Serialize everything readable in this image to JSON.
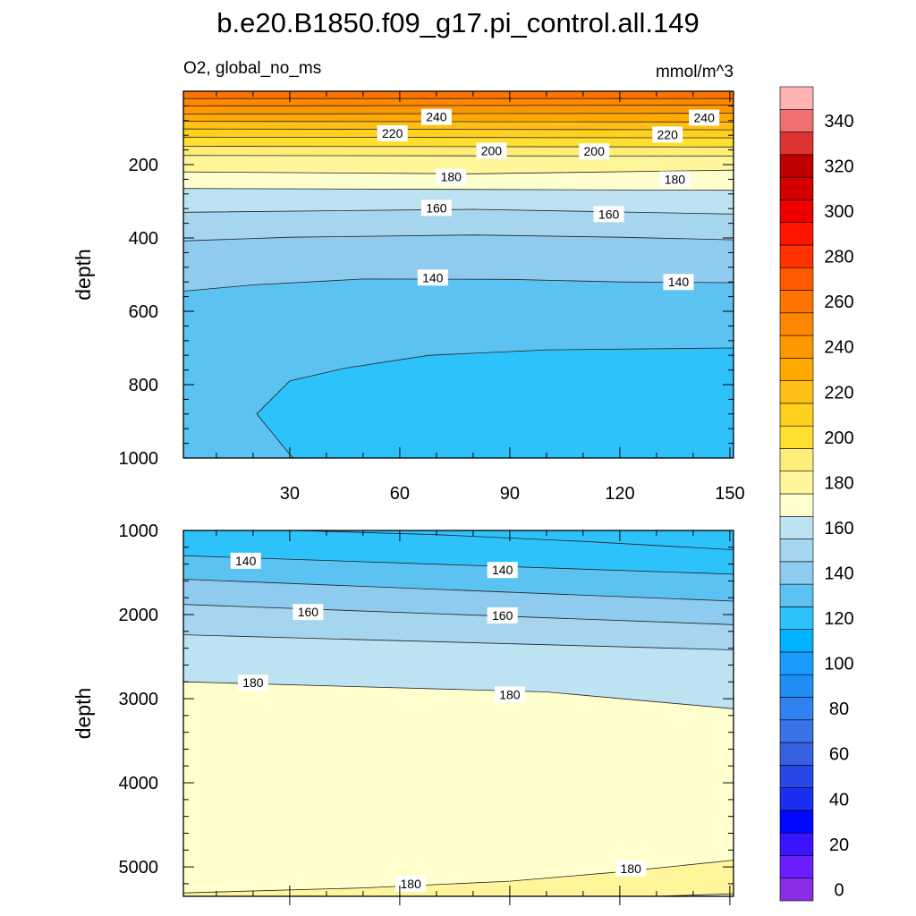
{
  "chart_data": {
    "type": "contour",
    "title": "b.e20.B1850.f09_g17.pi_control.all.149",
    "subtitle_left": "O2, global_no_ms",
    "subtitle_right": "mmol/m^3",
    "units": "mmol/m^3",
    "colorbar": {
      "levels": [
        0,
        10,
        20,
        30,
        40,
        50,
        60,
        70,
        80,
        90,
        100,
        110,
        120,
        130,
        140,
        150,
        160,
        170,
        180,
        190,
        200,
        210,
        220,
        230,
        240,
        250,
        260,
        270,
        280,
        290,
        300,
        310,
        320,
        330,
        340,
        350
      ],
      "labels": [
        "0",
        "20",
        "40",
        "60",
        "80",
        "100",
        "120",
        "140",
        "160",
        "180",
        "200",
        "220",
        "240",
        "260",
        "280",
        "300",
        "320",
        "340"
      ],
      "colors": [
        "#8b2ce6",
        "#6a1eff",
        "#3a14ff",
        "#0008ff",
        "#1a2ff2",
        "#2a48e8",
        "#3560e0",
        "#3a72e8",
        "#2f82f0",
        "#1f8ff5",
        "#1a9cff",
        "#00b1ff",
        "#2ec2fb",
        "#5cc2f2",
        "#8ecbef",
        "#a6d5ef",
        "#bde2f2",
        "#ffffce",
        "#fff69b",
        "#ffed7a",
        "#ffe030",
        "#ffd11f",
        "#ffbf15",
        "#ffaa00",
        "#ff9700",
        "#ff8600",
        "#ff7400",
        "#ff5a00",
        "#ff3200",
        "#ff1400",
        "#ee0000",
        "#d40000",
        "#c00000",
        "#dd3333",
        "#ee7070",
        "#ffb4b4"
      ]
    },
    "panels": [
      {
        "name": "upper",
        "ylabel": "depth",
        "ylim": [
          0,
          1000
        ],
        "xlim": [
          1,
          151
        ],
        "xticks": [
          30,
          60,
          90,
          120,
          150
        ],
        "yticks": [
          200,
          400,
          600,
          800,
          1000
        ],
        "bands": [
          {
            "lower": 250,
            "upper": 260,
            "color": "#ff8600",
            "boundary": [
              [
                1,
                20
              ],
              [
                151,
                20
              ]
            ]
          },
          {
            "lower": 240,
            "upper": 250,
            "color": "#ff9700",
            "boundary": [
              [
                1,
                40
              ],
              [
                151,
                38
              ]
            ]
          },
          {
            "lower": 230,
            "upper": 240,
            "color": "#ffaa00",
            "boundary": [
              [
                1,
                62
              ],
              [
                151,
                60
              ]
            ]
          },
          {
            "lower": 220,
            "upper": 230,
            "color": "#ffbf15",
            "boundary": [
              [
                1,
                82
              ],
              [
                151,
                84
              ]
            ]
          },
          {
            "lower": 210,
            "upper": 220,
            "color": "#ffd11f",
            "boundary": [
              [
                1,
                103
              ],
              [
                151,
                105
              ]
            ]
          },
          {
            "lower": 200,
            "upper": 210,
            "color": "#ffe030",
            "boundary": [
              [
                1,
                125
              ],
              [
                151,
                127
              ]
            ]
          },
          {
            "lower": 190,
            "upper": 200,
            "color": "#ffed7a",
            "boundary": [
              [
                1,
                150
              ],
              [
                151,
                152
              ]
            ]
          },
          {
            "lower": 180,
            "upper": 190,
            "color": "#fff69b",
            "boundary": [
              [
                1,
                175
              ],
              [
                151,
                177
              ]
            ]
          },
          {
            "lower": 170,
            "upper": 180,
            "color": "#ffffce",
            "boundary": [
              [
                1,
                220
              ],
              [
                80,
                225
              ],
              [
                151,
                215
              ]
            ]
          },
          {
            "lower": 160,
            "upper": 170,
            "color": "#bde2f2",
            "boundary": [
              [
                1,
                265
              ],
              [
                151,
                270
              ]
            ]
          },
          {
            "lower": 150,
            "upper": 160,
            "color": "#a6d5ef",
            "boundary": [
              [
                1,
                330
              ],
              [
                80,
                322
              ],
              [
                151,
                335
              ]
            ]
          },
          {
            "lower": 140,
            "upper": 150,
            "color": "#8ecbef",
            "boundary": [
              [
                1,
                408
              ],
              [
                30,
                398
              ],
              [
                80,
                392
              ],
              [
                120,
                398
              ],
              [
                151,
                405
              ]
            ]
          },
          {
            "lower": 130,
            "upper": 140,
            "color": "#5cc2f2",
            "boundary": [
              [
                1,
                545
              ],
              [
                20,
                528
              ],
              [
                50,
                512
              ],
              [
                90,
                513
              ],
              [
                120,
                520
              ],
              [
                151,
                522
              ]
            ]
          }
        ],
        "pool": {
          "lower": 120,
          "upper": 130,
          "color": "#2ec2fb",
          "boundary": [
            [
              151,
              700
            ],
            [
              100,
              705
            ],
            [
              68,
              720
            ],
            [
              45,
              755
            ],
            [
              30,
              790
            ],
            [
              21,
              880
            ],
            [
              30,
              990
            ],
            [
              31,
              1000
            ],
            [
              151,
              1000
            ]
          ]
        },
        "contour_labels": [
          {
            "text": "240",
            "x": 70,
            "y": 70
          },
          {
            "text": "240",
            "x": 143,
            "y": 72
          },
          {
            "text": "220",
            "x": 58,
            "y": 115
          },
          {
            "text": "220",
            "x": 133,
            "y": 118
          },
          {
            "text": "200",
            "x": 85,
            "y": 162
          },
          {
            "text": "200",
            "x": 113,
            "y": 164
          },
          {
            "text": "180",
            "x": 74,
            "y": 233
          },
          {
            "text": "180",
            "x": 135,
            "y": 240
          },
          {
            "text": "160",
            "x": 70,
            "y": 318
          },
          {
            "text": "160",
            "x": 117,
            "y": 335
          },
          {
            "text": "140",
            "x": 69,
            "y": 508
          },
          {
            "text": "140",
            "x": 136,
            "y": 520
          }
        ]
      },
      {
        "name": "lower",
        "ylabel": "depth",
        "ylim": [
          1000,
          5350
        ],
        "xlim": [
          1,
          151
        ],
        "xticks": [
          30,
          60,
          90,
          120,
          150
        ],
        "yticks": [
          1000,
          2000,
          3000,
          4000,
          5000
        ],
        "bands": [
          {
            "lower": 130,
            "upper": 140,
            "color": "#5cc2f2",
            "boundary": [
              [
                1,
                1300
              ],
              [
                151,
                1520
              ]
            ]
          },
          {
            "lower": 140,
            "upper": 150,
            "color": "#8ecbef",
            "boundary": [
              [
                1,
                1580
              ],
              [
                151,
                1840
              ]
            ]
          },
          {
            "lower": 150,
            "upper": 160,
            "color": "#a6d5ef",
            "boundary": [
              [
                1,
                1880
              ],
              [
                151,
                2120
              ]
            ]
          },
          {
            "lower": 160,
            "upper": 170,
            "color": "#bde2f2",
            "boundary": [
              [
                1,
                2240
              ],
              [
                151,
                2420
              ]
            ]
          },
          {
            "lower": 170,
            "upper": 180,
            "color": "#ffffce",
            "boundary": [
              [
                1,
                2800
              ],
              [
                100,
                2920
              ],
              [
                151,
                3120
              ]
            ]
          },
          {
            "lower": 180,
            "upper": 190,
            "color": "#fff69b",
            "boundary": [
              [
                1,
                5310
              ],
              [
                50,
                5250
              ],
              [
                90,
                5170
              ],
              [
                120,
                5060
              ],
              [
                151,
                4920
              ]
            ]
          },
          {
            "lower": 170,
            "upper": 180,
            "color": "#ffffce",
            "boundary": [
              [
                130,
                5350
              ],
              [
                151,
                5320
              ]
            ]
          }
        ],
        "pool": {
          "lower": 120,
          "upper": 130,
          "color": "#2ec2fb",
          "boundary": [
            [
              31,
              1000
            ],
            [
              70,
              1050
            ],
            [
              110,
              1130
            ],
            [
              151,
              1230
            ],
            [
              151,
              1000
            ]
          ]
        },
        "contour_labels": [
          {
            "text": "140",
            "x": 18,
            "y": 1360
          },
          {
            "text": "140",
            "x": 88,
            "y": 1470
          },
          {
            "text": "160",
            "x": 35,
            "y": 1970
          },
          {
            "text": "160",
            "x": 88,
            "y": 2010
          },
          {
            "text": "180",
            "x": 20,
            "y": 2810
          },
          {
            "text": "180",
            "x": 90,
            "y": 2950
          },
          {
            "text": "180",
            "x": 63,
            "y": 5200
          },
          {
            "text": "180",
            "x": 123,
            "y": 5020
          }
        ]
      }
    ]
  }
}
